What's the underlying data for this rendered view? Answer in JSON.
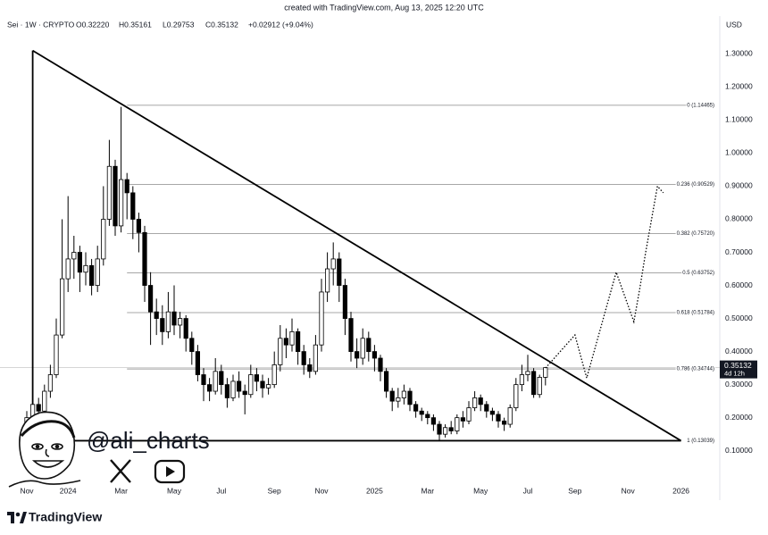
{
  "header": {
    "created": "created with TradingView.com, Aug 13, 2025 12:20 UTC",
    "symbol": "Sei · 1W · CRYPTO",
    "open": "O0.32220",
    "high": "H0.35161",
    "low": "L0.29753",
    "close": "C0.35132",
    "change": "+0.02912 (+9.04%)",
    "currency": "USD"
  },
  "chart_data": {
    "type": "candlestick",
    "categories": [
      "Nov",
      null,
      null,
      null,
      null,
      null,
      null,
      "2024",
      null,
      null,
      null,
      null,
      null,
      null,
      null,
      null,
      "Mar",
      null,
      null,
      null,
      null,
      null,
      null,
      null,
      null,
      "May",
      null,
      null,
      null,
      null,
      null,
      null,
      null,
      "Jul",
      null,
      null,
      null,
      null,
      null,
      null,
      null,
      null,
      "Sep",
      null,
      null,
      null,
      null,
      null,
      null,
      null,
      "Nov",
      null,
      null,
      null,
      null,
      null,
      null,
      null,
      null,
      "2025",
      null,
      null,
      null,
      null,
      null,
      null,
      null,
      null,
      "Mar",
      null,
      null,
      null,
      null,
      null,
      null,
      null,
      null,
      "May",
      null,
      null,
      null,
      null,
      null,
      null,
      null,
      "Jul",
      null,
      null,
      null,
      null,
      null,
      null,
      null,
      "Sep",
      null,
      null,
      null,
      null,
      null,
      null,
      null,
      null,
      "Nov",
      null,
      null,
      null,
      null,
      null,
      null,
      null,
      null,
      "2026"
    ],
    "open": [
      0.16,
      0.2,
      0.24,
      0.22,
      0.28,
      0.33,
      0.45,
      0.62,
      0.68,
      0.7,
      0.64,
      0.66,
      0.6,
      0.68,
      0.8,
      0.96,
      0.78,
      0.92,
      0.88,
      0.8,
      0.76,
      0.6,
      0.52,
      0.5,
      0.46,
      0.52,
      0.48,
      0.5,
      0.44,
      0.4,
      0.33,
      0.3,
      0.28,
      0.34,
      0.3,
      0.26,
      0.31,
      0.28,
      0.27,
      0.33,
      0.31,
      0.29,
      0.3,
      0.36,
      0.44,
      0.42,
      0.46,
      0.4,
      0.36,
      0.34,
      0.42,
      0.58,
      0.65,
      0.68,
      0.6,
      0.5,
      0.4,
      0.38,
      0.44,
      0.4,
      0.38,
      0.34,
      0.28,
      0.25,
      0.26,
      0.28,
      0.24,
      0.22,
      0.21,
      0.2,
      0.18,
      0.15,
      0.17,
      0.16,
      0.2,
      0.19,
      0.23,
      0.26,
      0.24,
      0.22,
      0.21,
      0.19,
      0.18,
      0.23,
      0.3,
      0.33,
      0.34,
      0.27,
      0.3222,
      null,
      null,
      null,
      null,
      null,
      null,
      null,
      null,
      null,
      null,
      null,
      null,
      null,
      null,
      null,
      null,
      null,
      null,
      null,
      null,
      null,
      null,
      null
    ],
    "high": [
      0.22,
      0.27,
      0.26,
      0.3,
      0.36,
      0.5,
      0.8,
      0.87,
      0.75,
      0.72,
      0.7,
      0.68,
      0.72,
      0.9,
      1.04,
      0.98,
      1.14,
      0.94,
      0.9,
      0.82,
      0.78,
      0.64,
      0.56,
      0.54,
      0.58,
      0.6,
      0.52,
      0.51,
      0.46,
      0.42,
      0.35,
      0.32,
      0.38,
      0.36,
      0.32,
      0.33,
      0.34,
      0.3,
      0.36,
      0.35,
      0.33,
      0.32,
      0.4,
      0.48,
      0.47,
      0.5,
      0.47,
      0.42,
      0.38,
      0.45,
      0.62,
      0.7,
      0.73,
      0.7,
      0.62,
      0.52,
      0.44,
      0.47,
      0.46,
      0.42,
      0.39,
      0.35,
      0.29,
      0.29,
      0.3,
      0.29,
      0.25,
      0.23,
      0.22,
      0.21,
      0.19,
      0.18,
      0.19,
      0.21,
      0.22,
      0.25,
      0.28,
      0.27,
      0.25,
      0.23,
      0.22,
      0.2,
      0.24,
      0.32,
      0.36,
      0.39,
      0.35,
      0.33,
      0.35161,
      null,
      null,
      null,
      null,
      null,
      null,
      null,
      null,
      null,
      null,
      null,
      null,
      null,
      null,
      null,
      null,
      null,
      null,
      null,
      null,
      null,
      null,
      null
    ],
    "low": [
      0.14,
      0.18,
      0.19,
      0.21,
      0.26,
      0.32,
      0.44,
      0.58,
      0.62,
      0.58,
      0.6,
      0.57,
      0.58,
      0.66,
      0.78,
      0.75,
      0.76,
      0.8,
      0.74,
      0.7,
      0.55,
      0.42,
      0.45,
      0.42,
      0.44,
      0.45,
      0.44,
      0.4,
      0.36,
      0.31,
      0.25,
      0.25,
      0.27,
      0.27,
      0.23,
      0.25,
      0.26,
      0.21,
      0.26,
      0.28,
      0.26,
      0.27,
      0.29,
      0.34,
      0.38,
      0.4,
      0.36,
      0.33,
      0.32,
      0.33,
      0.4,
      0.55,
      0.6,
      0.55,
      0.45,
      0.37,
      0.35,
      0.36,
      0.37,
      0.34,
      0.31,
      0.26,
      0.22,
      0.23,
      0.24,
      0.22,
      0.2,
      0.19,
      0.18,
      0.16,
      0.13,
      0.14,
      0.15,
      0.15,
      0.17,
      0.18,
      0.22,
      0.22,
      0.2,
      0.19,
      0.17,
      0.16,
      0.17,
      0.22,
      0.28,
      0.31,
      0.26,
      0.26,
      0.29753,
      null,
      null,
      null,
      null,
      null,
      null,
      null,
      null,
      null,
      null,
      null,
      null,
      null,
      null,
      null,
      null,
      null,
      null,
      null,
      null,
      null,
      null,
      null
    ],
    "close": [
      0.2,
      0.24,
      0.22,
      0.28,
      0.33,
      0.45,
      0.62,
      0.68,
      0.7,
      0.64,
      0.66,
      0.6,
      0.68,
      0.8,
      0.96,
      0.78,
      0.92,
      0.88,
      0.8,
      0.76,
      0.6,
      0.52,
      0.5,
      0.46,
      0.52,
      0.48,
      0.5,
      0.44,
      0.4,
      0.33,
      0.3,
      0.28,
      0.34,
      0.3,
      0.26,
      0.31,
      0.28,
      0.27,
      0.33,
      0.31,
      0.29,
      0.3,
      0.36,
      0.44,
      0.42,
      0.46,
      0.4,
      0.36,
      0.34,
      0.42,
      0.58,
      0.65,
      0.68,
      0.6,
      0.5,
      0.4,
      0.38,
      0.44,
      0.4,
      0.38,
      0.34,
      0.28,
      0.25,
      0.26,
      0.28,
      0.24,
      0.22,
      0.21,
      0.2,
      0.18,
      0.15,
      0.17,
      0.16,
      0.2,
      0.19,
      0.23,
      0.26,
      0.24,
      0.22,
      0.21,
      0.19,
      0.18,
      0.23,
      0.3,
      0.33,
      0.34,
      0.27,
      0.3222,
      0.35132,
      null,
      null,
      null,
      null,
      null,
      null,
      null,
      null,
      null,
      null,
      null,
      null,
      null,
      null,
      null,
      null,
      null,
      null,
      null,
      null,
      null,
      null,
      null
    ],
    "projection": [
      null,
      null,
      null,
      null,
      null,
      null,
      null,
      null,
      null,
      null,
      null,
      null,
      null,
      null,
      null,
      null,
      null,
      null,
      null,
      null,
      null,
      null,
      null,
      null,
      null,
      null,
      null,
      null,
      null,
      null,
      null,
      null,
      null,
      null,
      null,
      null,
      null,
      null,
      null,
      null,
      null,
      null,
      null,
      null,
      null,
      null,
      null,
      null,
      null,
      null,
      null,
      null,
      null,
      null,
      null,
      null,
      null,
      null,
      null,
      null,
      null,
      null,
      null,
      null,
      null,
      null,
      null,
      null,
      null,
      null,
      null,
      null,
      null,
      null,
      null,
      null,
      null,
      null,
      null,
      null,
      null,
      null,
      null,
      null,
      null,
      null,
      null,
      null,
      0.35,
      0.37,
      0.39,
      0.41,
      0.43,
      0.45,
      0.385,
      0.32,
      0.384,
      0.448,
      0.512,
      0.576,
      0.64,
      0.59,
      0.54,
      0.49,
      0.59,
      0.7,
      0.8,
      0.9,
      0.88,
      null,
      null,
      null
    ],
    "trendline": {
      "values": [
        1.31,
        0.13039
      ]
    },
    "fib_levels": [
      {
        "value": 1.14465,
        "label": "0 (1.14465)"
      },
      {
        "value": 0.90529,
        "label": "0.236 (0.90529)"
      },
      {
        "value": 0.7572,
        "label": "0.382 (0.75720)"
      },
      {
        "value": 0.63752,
        "label": "0.5 (0.63752)"
      },
      {
        "value": 0.51784,
        "label": "0.618 (0.51784)"
      },
      {
        "value": 0.34744,
        "label": "0.786 (0.34744)"
      },
      {
        "value": 0.13039,
        "label": "1 (0.13039)"
      }
    ],
    "ylim": [
      0.01,
      1.355
    ],
    "yticks": [
      {
        "value": 0.1,
        "label": "0.10000"
      },
      {
        "value": 0.2,
        "label": "0.20000"
      },
      {
        "value": 0.3,
        "label": "0.30000"
      },
      {
        "value": 0.4,
        "label": "0.40000"
      },
      {
        "value": 0.5,
        "label": "0.50000"
      },
      {
        "value": 0.6,
        "label": "0.60000"
      },
      {
        "value": 0.7,
        "label": "0.70000"
      },
      {
        "value": 0.8,
        "label": "0.80000"
      },
      {
        "value": 0.9,
        "label": "0.90000"
      },
      {
        "value": 1,
        "label": "1.00000"
      },
      {
        "value": 1.1,
        "label": "1.10000"
      },
      {
        "value": 1.2,
        "label": "1.20000"
      },
      {
        "value": 1.3,
        "label": "1.30000"
      }
    ],
    "last_price_label": "0.35132",
    "countdown": "4d 12h"
  },
  "watermark": {
    "handle": "@ali_charts"
  },
  "footer": {
    "brand": "TradingView"
  }
}
